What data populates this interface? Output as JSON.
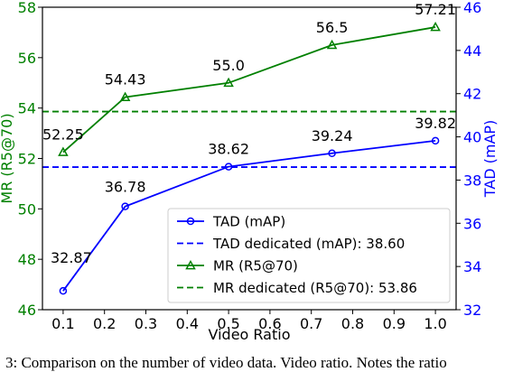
{
  "chart_data": {
    "type": "line",
    "x": [
      0.1,
      0.25,
      0.5,
      0.75,
      1.0
    ],
    "xlabel": "Video Ratio",
    "xlim": [
      0.05,
      1.05
    ],
    "xticks": [
      "0.1",
      "0.2",
      "0.3",
      "0.4",
      "0.5",
      "0.6",
      "0.7",
      "0.8",
      "0.9",
      "1.0"
    ],
    "y_left": {
      "label": "MR (R5@70)",
      "color": "#008000",
      "ylim": [
        46,
        58
      ],
      "ticks": [
        "46",
        "48",
        "50",
        "52",
        "54",
        "56",
        "58"
      ]
    },
    "y_right": {
      "label": "TAD (mAP)",
      "color": "#0000ff",
      "ylim": [
        32,
        46
      ],
      "ticks": [
        "32",
        "34",
        "36",
        "38",
        "40",
        "42",
        "44",
        "46"
      ]
    },
    "series": [
      {
        "name": "TAD (mAP)",
        "axis": "right",
        "color": "#0000ff",
        "marker": "circle",
        "values": [
          32.87,
          36.78,
          38.62,
          39.24,
          39.82
        ],
        "labels": [
          "32.87",
          "36.78",
          "38.62",
          "39.24",
          "39.82"
        ]
      },
      {
        "name": "TAD dedicated (mAP): 38.60",
        "axis": "right",
        "color": "#0000ff",
        "style": "dashed",
        "constant": 38.6
      },
      {
        "name": "MR (R5@70)",
        "axis": "left",
        "color": "#008000",
        "marker": "triangle",
        "values": [
          52.25,
          54.43,
          55.0,
          56.5,
          57.21
        ],
        "labels": [
          "52.25",
          "54.43",
          "55.0",
          "56.5",
          "57.21"
        ]
      },
      {
        "name": "MR dedicated (R5@70): 53.86",
        "axis": "left",
        "color": "#008000",
        "style": "dashed",
        "constant": 53.86
      }
    ],
    "legend_position": "lower-right",
    "grid": false
  },
  "caption": "3: Comparison on the number of video data. Video ratio. Notes the ratio"
}
